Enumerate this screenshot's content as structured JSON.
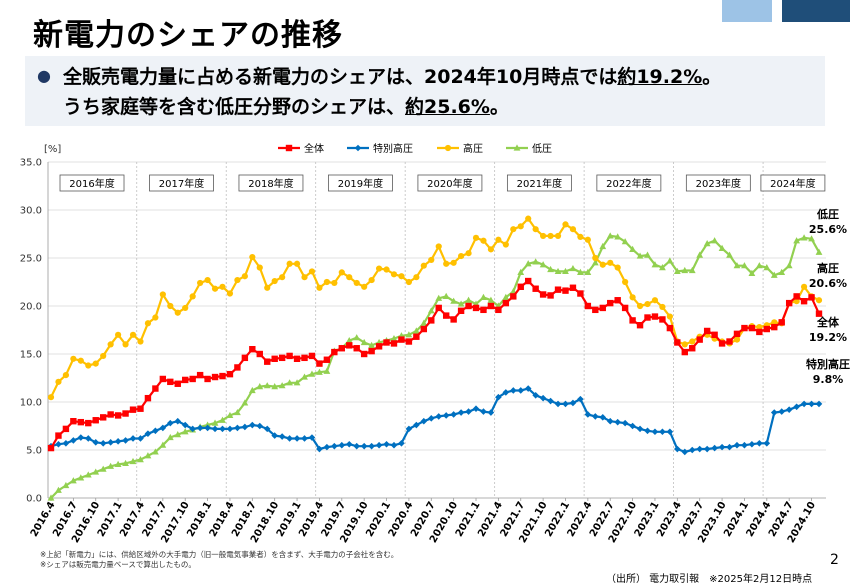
{
  "slide": {
    "title": "新電力のシェアの推移",
    "summary_line1_prefix": "全販売電力量に占める新電力のシェアは、2024年10月時点では",
    "summary_line1_value": "約19.2%",
    "summary_line1_suffix": "。",
    "summary_line2_prefix": "うち家庭等を含む低圧分野のシェアは、",
    "summary_line2_value": "約25.6%",
    "summary_line2_suffix": "。",
    "footnote1": "※上記「新電力」には、供給区域外の大手電力（旧一般電気事業者）を含まず、大手電力の子会社を含む。",
    "footnote2": "※シェアは販売電力量ベースで算出したもの。",
    "source": "（出所） 電力取引報　※2025年2月12日時点",
    "page_number": "2"
  },
  "colors": {
    "total": "#ff0000",
    "extra_high": "#0070c0",
    "high": "#ffc000",
    "low": "#92d050",
    "title_bar_dark": "#1f4e79",
    "title_bar_light": "#9dc3e6"
  },
  "chart_data": {
    "type": "line",
    "unit_label": "[%]",
    "ylim": [
      0,
      35
    ],
    "y_ticks": [
      "0.0",
      "5.0",
      "10.0",
      "15.0",
      "20.0",
      "25.0",
      "30.0",
      "35.0"
    ],
    "legend_position": "top",
    "x_start": "2016.4",
    "x_tick_labels": [
      "2016.4",
      "2016.7",
      "2016.10",
      "2017.1",
      "2017.4",
      "2017.7",
      "2017.10",
      "2018.1",
      "2018.4",
      "2018.7",
      "2018.10",
      "2019.1",
      "2019.4",
      "2019.7",
      "2019.10",
      "2020.1",
      "2020.4",
      "2020.7",
      "2020.10",
      "2021.1",
      "2021.4",
      "2021.7",
      "2021.10",
      "2022.1",
      "2022.4",
      "2022.7",
      "2022.10",
      "2023.1",
      "2023.4",
      "2023.7",
      "2023.10",
      "2024.1",
      "2024.4",
      "2024.7",
      "2024.10"
    ],
    "fiscal_years": [
      "2016年度",
      "2017年度",
      "2018年度",
      "2019年度",
      "2020年度",
      "2021年度",
      "2022年度",
      "2023年度",
      "2024年度"
    ],
    "series": [
      {
        "name": "全体",
        "color_key": "total",
        "marker": "square",
        "end_label": "全体",
        "end_value_label": "19.2%",
        "values": [
          5.2,
          6.5,
          7.2,
          8.0,
          7.9,
          7.8,
          8.1,
          8.4,
          8.7,
          8.6,
          8.8,
          9.2,
          9.3,
          10.4,
          11.4,
          12.4,
          12.1,
          11.9,
          12.3,
          12.4,
          12.8,
          12.4,
          12.6,
          12.7,
          12.9,
          13.6,
          14.6,
          15.5,
          15.0,
          14.2,
          14.5,
          14.6,
          14.8,
          14.5,
          14.6,
          14.8,
          14.0,
          14.4,
          15.2,
          15.6,
          15.9,
          15.6,
          15.0,
          15.3,
          15.8,
          16.2,
          16.1,
          16.5,
          16.3,
          16.8,
          17.6,
          18.5,
          19.8,
          19.0,
          18.6,
          19.5,
          20.0,
          19.8,
          19.6,
          20.0,
          19.6,
          20.3,
          21.0,
          22.0,
          22.6,
          21.8,
          21.2,
          21.1,
          21.7,
          21.6,
          21.9,
          21.3,
          20.0,
          19.6,
          19.8,
          20.3,
          20.6,
          19.8,
          18.5,
          18.0,
          18.8,
          18.9,
          18.6,
          17.7,
          16.2,
          15.2,
          15.6,
          16.5,
          17.4,
          17.0,
          16.1,
          16.3,
          17.1,
          17.7,
          17.7,
          17.3,
          17.6,
          17.8,
          18.3,
          20.3,
          21.0,
          20.5,
          20.9,
          19.2
        ]
      },
      {
        "name": "特別高圧",
        "color_key": "extra_high",
        "marker": "diamond",
        "end_label": "特別高圧",
        "end_value_label": "9.8%",
        "values": [
          5.4,
          5.6,
          5.7,
          6.0,
          6.3,
          6.2,
          5.8,
          5.7,
          5.8,
          5.9,
          6.0,
          6.2,
          6.2,
          6.7,
          7.0,
          7.3,
          7.8,
          8.0,
          7.6,
          7.2,
          7.3,
          7.3,
          7.2,
          7.2,
          7.2,
          7.3,
          7.4,
          7.6,
          7.5,
          7.2,
          6.5,
          6.4,
          6.2,
          6.2,
          6.2,
          6.3,
          5.1,
          5.3,
          5.4,
          5.5,
          5.6,
          5.4,
          5.4,
          5.4,
          5.5,
          5.6,
          5.5,
          5.7,
          7.2,
          7.6,
          8.0,
          8.3,
          8.5,
          8.6,
          8.7,
          8.9,
          9.0,
          9.3,
          9.0,
          8.9,
          10.5,
          11.0,
          11.2,
          11.2,
          11.4,
          10.7,
          10.4,
          10.1,
          9.8,
          9.8,
          9.9,
          10.3,
          8.7,
          8.5,
          8.4,
          8.0,
          7.9,
          7.8,
          7.5,
          7.2,
          7.0,
          6.9,
          6.9,
          6.9,
          5.1,
          4.8,
          5.0,
          5.1,
          5.1,
          5.2,
          5.3,
          5.3,
          5.5,
          5.5,
          5.6,
          5.7,
          5.7,
          8.9,
          9.0,
          9.2,
          9.5,
          9.8,
          9.8,
          9.8
        ]
      },
      {
        "name": "高圧",
        "color_key": "high",
        "marker": "circle",
        "end_label": "高圧",
        "end_value_label": "20.6%",
        "values": [
          10.5,
          12.1,
          12.8,
          14.5,
          14.3,
          13.8,
          14.0,
          14.8,
          16.0,
          17.0,
          16.0,
          17.0,
          16.3,
          18.2,
          18.8,
          21.2,
          20.0,
          19.3,
          19.8,
          21.0,
          22.4,
          22.7,
          21.8,
          22.0,
          21.3,
          22.7,
          23.1,
          25.1,
          24.0,
          21.9,
          22.6,
          23.0,
          24.4,
          24.4,
          23.0,
          23.6,
          21.9,
          22.5,
          22.4,
          23.5,
          23.0,
          22.4,
          22.0,
          22.7,
          23.9,
          23.8,
          23.3,
          23.1,
          22.5,
          23.0,
          24.2,
          24.8,
          26.2,
          24.4,
          24.5,
          25.2,
          25.5,
          27.1,
          26.8,
          25.9,
          26.9,
          26.4,
          28.0,
          28.3,
          29.1,
          28.0,
          27.3,
          27.3,
          27.3,
          28.5,
          28.0,
          27.2,
          26.9,
          25.0,
          24.3,
          24.5,
          24.0,
          22.5,
          20.9,
          20.0,
          20.2,
          20.6,
          19.9,
          18.9,
          16.3,
          16.0,
          16.3,
          16.8,
          17.0,
          16.6,
          16.3,
          16.1,
          16.5,
          17.7,
          17.9,
          17.8,
          18.0,
          18.3,
          18.2,
          20.3,
          20.5,
          22.0,
          21.0,
          20.6
        ]
      },
      {
        "name": "低圧",
        "color_key": "low",
        "marker": "triangle",
        "end_label": "低圧",
        "end_value_label": "25.6%",
        "values": [
          0.0,
          0.8,
          1.3,
          1.8,
          2.1,
          2.4,
          2.7,
          3.0,
          3.3,
          3.5,
          3.6,
          3.8,
          4.0,
          4.4,
          4.8,
          5.5,
          6.3,
          6.6,
          6.9,
          7.1,
          7.4,
          7.6,
          7.8,
          8.1,
          8.6,
          8.9,
          9.9,
          11.2,
          11.6,
          11.7,
          11.6,
          11.7,
          12.0,
          12.0,
          12.6,
          12.9,
          13.1,
          13.2,
          15.3,
          15.6,
          16.4,
          16.7,
          16.2,
          15.9,
          16.2,
          16.4,
          16.6,
          16.9,
          17.0,
          17.4,
          18.2,
          19.5,
          20.8,
          21.0,
          20.5,
          20.2,
          20.6,
          20.2,
          20.9,
          20.6,
          20.0,
          20.9,
          21.5,
          23.5,
          24.4,
          24.6,
          24.3,
          23.8,
          23.6,
          23.6,
          23.9,
          23.5,
          23.5,
          24.5,
          26.2,
          27.3,
          27.2,
          26.7,
          25.9,
          25.2,
          25.3,
          24.3,
          24.0,
          24.7,
          23.6,
          23.7,
          23.7,
          25.3,
          26.5,
          26.8,
          26.0,
          25.3,
          24.2,
          24.2,
          23.4,
          24.2,
          24.0,
          23.2,
          23.5,
          24.2,
          26.8,
          27.1,
          27.0,
          25.6
        ]
      }
    ]
  }
}
